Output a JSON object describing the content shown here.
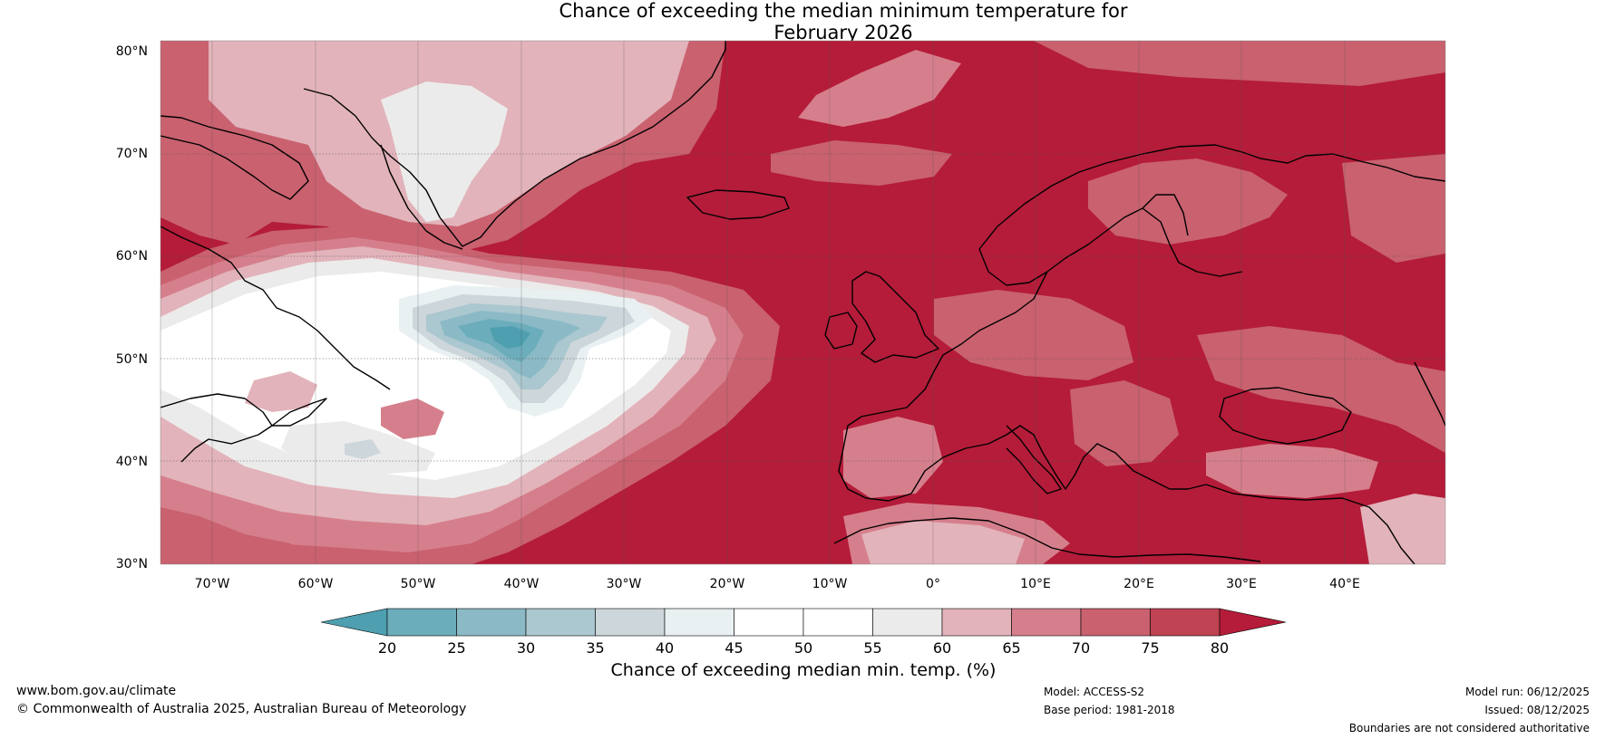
{
  "title": {
    "line1": "Chance of exceeding the median minimum temperature for",
    "line2": "February 2026"
  },
  "map": {
    "lat_labels": [
      "80°N",
      "70°N",
      "60°N",
      "50°N",
      "40°N",
      "30°N"
    ],
    "lon_labels": [
      "70°W",
      "60°W",
      "50°W",
      "40°W",
      "30°W",
      "20°W",
      "10°W",
      "0°",
      "10°E",
      "20°E",
      "30°E",
      "40°E"
    ],
    "colors": {
      "c20": "#4e9fb0",
      "c25": "#6cadbb",
      "c30": "#8bbac6",
      "c35": "#abc7cf",
      "c40": "#cdd6da",
      "c45": "#e9f0f2",
      "c50": "#ffffff",
      "c55": "#ffffff",
      "c60": "#ecebeb",
      "c65": "#e2b3ba",
      "c70": "#d67f8c",
      "c75": "#c9616f",
      "c80": "#bf4353",
      "c80p": "#b41c39"
    }
  },
  "colorbar": {
    "ticks": [
      "20",
      "25",
      "30",
      "35",
      "40",
      "45",
      "50",
      "55",
      "60",
      "65",
      "70",
      "75",
      "80"
    ],
    "label": "Chance of exceeding median min. temp. (%)"
  },
  "footer": {
    "website": "www.bom.gov.au/climate",
    "copyright": "© Commonwealth of Australia 2025, Australian Bureau of Meteorology",
    "model": "Model: ACCESS-S2",
    "base_period": "Base period: 1981-2018",
    "model_run": "Model run: 06/12/2025",
    "issued": "Issued: 08/12/2025",
    "disclaimer": "Boundaries are not considered authoritative"
  }
}
